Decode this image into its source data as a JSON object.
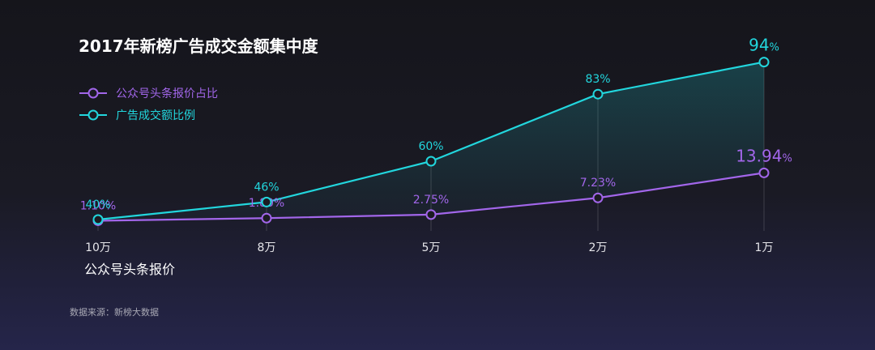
{
  "chart_data": {
    "type": "line",
    "title": "2017年新榜广告成交金额集中度",
    "categories": [
      "10万",
      "8万",
      "5万",
      "2万",
      "1万"
    ],
    "xlabel": "公众号头条报价",
    "ylabel": "",
    "ylim": [
      0,
      100
    ],
    "grid": false,
    "legend_position": "top-left",
    "series": [
      {
        "name": "公众号头条报价占比",
        "color": "#a266ea",
        "values": [
          1.1,
          1.8,
          2.75,
          7.23,
          13.94
        ],
        "labels": [
          "1.10%",
          "1.80%",
          "2.75%",
          "7.23%",
          "13.94"
        ]
      },
      {
        "name": "广告成交额比例",
        "color": "#22d6dd",
        "values": [
          40,
          46,
          60,
          83,
          94
        ],
        "labels": [
          "40%",
          "46%",
          "60%",
          "83%",
          "94"
        ]
      }
    ],
    "emphasis_suffix": "%",
    "source": "数据来源：新榜大数据"
  }
}
